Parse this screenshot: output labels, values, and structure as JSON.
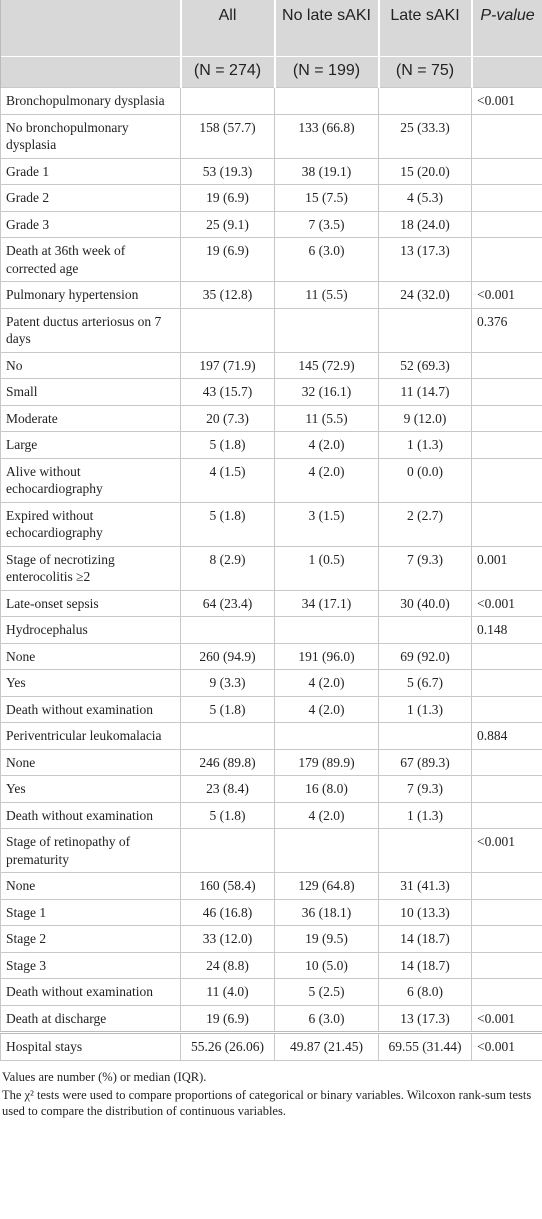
{
  "table": {
    "header": [
      "All",
      "No late sAKI",
      "Late sAKI",
      "P-value"
    ],
    "subheader": [
      "(N = 274)",
      "(N = 199)",
      "(N = 75)"
    ],
    "rows": [
      [
        "Bronchopulmonary dysplasia",
        null,
        null,
        null,
        "<0.001"
      ],
      [
        "No bronchopulmonary dysplasia",
        "158 (57.7)",
        "133 (66.8)",
        "25 (33.3)",
        null
      ],
      [
        "Grade 1",
        "53 (19.3)",
        "38 (19.1)",
        "15 (20.0)",
        null
      ],
      [
        "Grade 2",
        "19 (6.9)",
        "15 (7.5)",
        "4 (5.3)",
        null
      ],
      [
        "Grade 3",
        "25 (9.1)",
        "7 (3.5)",
        "18 (24.0)",
        null
      ],
      [
        "Death at 36th week of corrected age",
        "19 (6.9)",
        "6 (3.0)",
        "13 (17.3)",
        null
      ],
      [
        "Pulmonary hypertension",
        "35 (12.8)",
        "11 (5.5)",
        "24 (32.0)",
        "<0.001"
      ],
      [
        "Patent ductus arteriosus on 7 days",
        null,
        null,
        null,
        "0.376"
      ],
      [
        "No",
        "197 (71.9)",
        "145 (72.9)",
        "52 (69.3)",
        null
      ],
      [
        "Small",
        "43 (15.7)",
        "32 (16.1)",
        "11 (14.7)",
        null
      ],
      [
        "Moderate",
        "20 (7.3)",
        "11 (5.5)",
        "9 (12.0)",
        null
      ],
      [
        "Large",
        "5 (1.8)",
        "4 (2.0)",
        "1 (1.3)",
        null
      ],
      [
        "Alive without echocardiography",
        "4 (1.5)",
        "4 (2.0)",
        "0 (0.0)",
        null
      ],
      [
        "Expired without echocardiography",
        "5 (1.8)",
        "3 (1.5)",
        "2 (2.7)",
        null
      ],
      [
        "Stage of necrotizing enterocolitis ≥2",
        "8 (2.9)",
        "1 (0.5)",
        "7 (9.3)",
        "0.001"
      ],
      [
        "Late-onset sepsis",
        "64 (23.4)",
        "34 (17.1)",
        "30 (40.0)",
        "<0.001"
      ],
      [
        "Hydrocephalus",
        null,
        null,
        null,
        "0.148"
      ],
      [
        "None",
        "260 (94.9)",
        "191 (96.0)",
        "69 (92.0)",
        null
      ],
      [
        "Yes",
        "9 (3.3)",
        "4 (2.0)",
        "5 (6.7)",
        null
      ],
      [
        "Death without examination",
        "5 (1.8)",
        "4 (2.0)",
        "1 (1.3)",
        null
      ],
      [
        "Periventricular leukomalacia",
        null,
        null,
        null,
        "0.884"
      ],
      [
        "None",
        "246 (89.8)",
        "179 (89.9)",
        "67 (89.3)",
        null
      ],
      [
        "Yes",
        "23 (8.4)",
        "16 (8.0)",
        "7 (9.3)",
        null
      ],
      [
        "Death without examination",
        "5 (1.8)",
        "4 (2.0)",
        "1 (1.3)",
        null
      ],
      [
        "Stage of retinopathy of prematurity",
        null,
        null,
        null,
        "<0.001"
      ],
      [
        "None",
        "160 (58.4)",
        "129 (64.8)",
        "31 (41.3)",
        null
      ],
      [
        "Stage 1",
        "46 (16.8)",
        "36 (18.1)",
        "10 (13.3)",
        null
      ],
      [
        "Stage 2",
        "33 (12.0)",
        "19 (9.5)",
        "14 (18.7)",
        null
      ],
      [
        "Stage 3",
        "24 (8.8)",
        "10 (5.0)",
        "14 (18.7)",
        null
      ],
      [
        "Death without examination",
        "11 (4.0)",
        "5 (2.5)",
        "6 (8.0)",
        null
      ],
      [
        "Death at discharge",
        "19 (6.9)",
        "6 (3.0)",
        "13 (17.3)",
        "<0.001"
      ],
      [
        "Hospital stays",
        "55.26 (26.06)",
        "49.87 (21.45)",
        "69.55 (31.44)",
        "<0.001"
      ]
    ]
  },
  "footnotes": [
    "Values are number (%) or median (IQR).",
    "The χ² tests were used to compare proportions of categorical or binary variables. Wilcoxon rank-sum tests used to compare the distribution of continuous variables."
  ]
}
